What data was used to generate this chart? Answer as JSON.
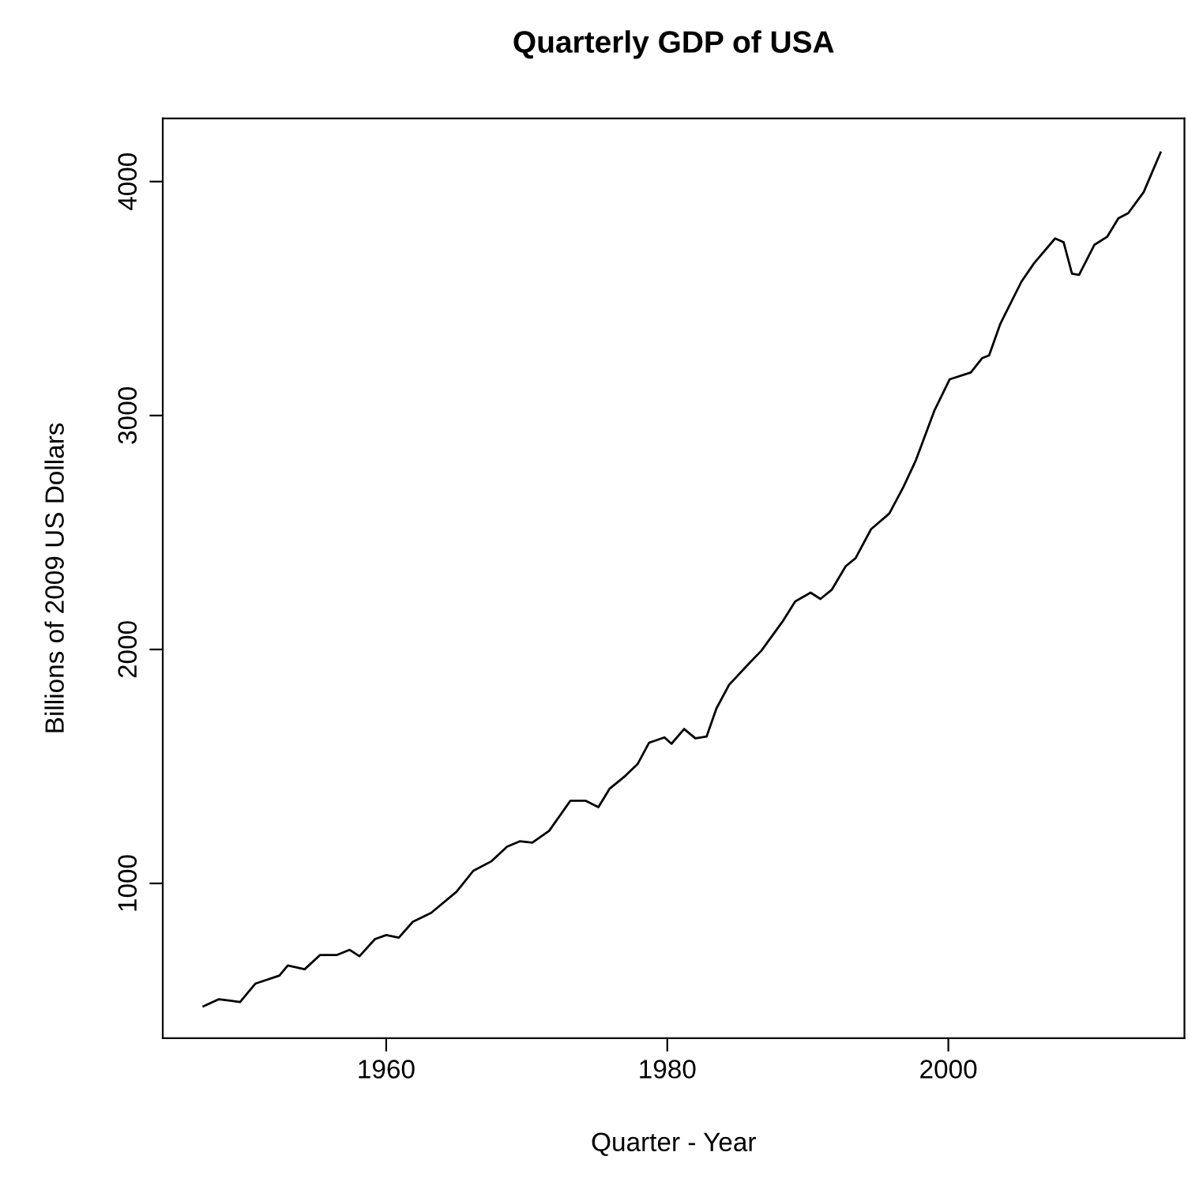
{
  "chart_data": {
    "type": "line",
    "title": "Quarterly GDP of USA",
    "xlabel": "Quarter - Year",
    "ylabel": "Billions of 2009 US Dollars",
    "x": [
      1947.0,
      1948.1,
      1949.0,
      1949.6,
      1950.7,
      1952.4,
      1953.0,
      1954.2,
      1955.3,
      1956.5,
      1957.4,
      1958.1,
      1959.2,
      1960.0,
      1960.9,
      1961.9,
      1963.2,
      1965.0,
      1966.2,
      1967.5,
      1968.6,
      1969.5,
      1970.4,
      1971.6,
      1973.1,
      1974.2,
      1975.1,
      1975.9,
      1977.0,
      1977.9,
      1978.7,
      1979.8,
      1980.3,
      1981.2,
      1982.0,
      1982.8,
      1983.5,
      1984.4,
      1985.8,
      1986.7,
      1988.2,
      1989.1,
      1990.2,
      1990.9,
      1991.7,
      1992.7,
      1993.4,
      1994.5,
      1995.8,
      1996.8,
      1997.7,
      1999.0,
      2000.1,
      2001.6,
      2002.4,
      2002.9,
      2003.7,
      2005.2,
      2006.1,
      2007.6,
      2008.2,
      2008.8,
      2009.3,
      2010.4,
      2011.3,
      2012.1,
      2012.8,
      2013.9,
      2015.1
    ],
    "series": [
      {
        "color": "#000000",
        "values": [
          475,
          505,
          498,
          493,
          572,
          606,
          649,
          633,
          694,
          694,
          716,
          689,
          762,
          779,
          768,
          836,
          874,
          964,
          1054,
          1095,
          1157,
          1180,
          1174,
          1225,
          1353,
          1353,
          1326,
          1405,
          1459,
          1511,
          1601,
          1624,
          1597,
          1660,
          1620,
          1628,
          1748,
          1849,
          1939,
          1995,
          2119,
          2205,
          2243,
          2216,
          2255,
          2356,
          2390,
          2514,
          2581,
          2694,
          2810,
          3020,
          3155,
          3184,
          3245,
          3257,
          3392,
          3572,
          3651,
          3757,
          3741,
          3606,
          3601,
          3730,
          3764,
          3843,
          3865,
          3955,
          4124
        ]
      }
    ],
    "xlim": [
      1944.1,
      2016.8
    ],
    "ylim": [
      338,
      4270
    ],
    "xticks": [
      1960,
      1980,
      2000
    ],
    "yticks": [
      1000,
      2000,
      3000,
      4000
    ],
    "grid": false,
    "legend": false,
    "marker": "none",
    "line_style": "solid"
  }
}
